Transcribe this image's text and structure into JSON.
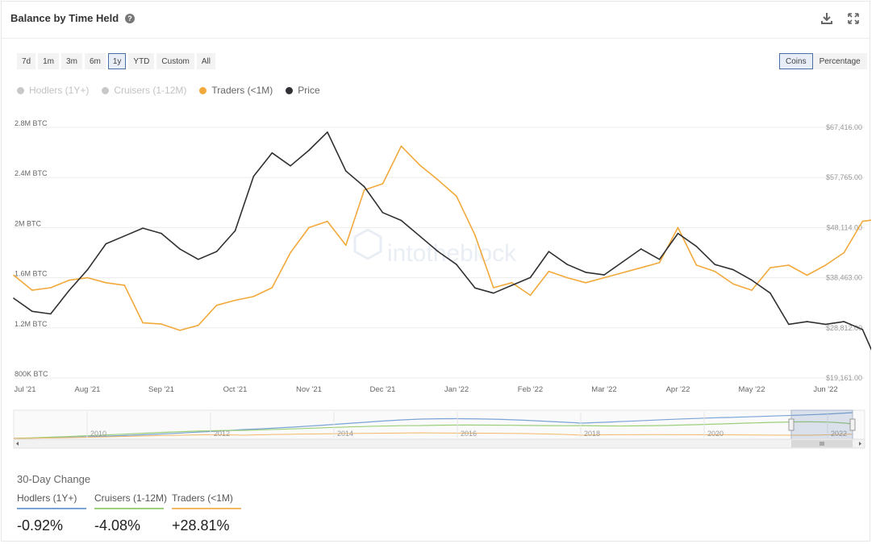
{
  "header": {
    "title": "Balance by Time Held"
  },
  "ranges": [
    "7d",
    "1m",
    "3m",
    "6m",
    "1y",
    "YTD",
    "Custom",
    "All"
  ],
  "active_range": "1y",
  "units": [
    "Coins",
    "Percentage"
  ],
  "active_unit": "Coins",
  "legend": [
    {
      "label": "Hodlers (1Y+)",
      "color": "#c8c8c8",
      "text_color": "#c2c2c2"
    },
    {
      "label": "Cruisers (1-12M)",
      "color": "#c8c8c8",
      "text_color": "#c2c2c2"
    },
    {
      "label": "Traders (<1M)",
      "color": "#f2a93b",
      "text_color": "#666666"
    },
    {
      "label": "Price",
      "color": "#2f3033",
      "text_color": "#666666"
    }
  ],
  "watermark": "intotheblock",
  "navigator": {
    "years": [
      "2010",
      "2012",
      "2014",
      "2016",
      "2018",
      "2020",
      "2022"
    ]
  },
  "change": {
    "title": "30-Day Change",
    "items": [
      {
        "label": "Hodlers (1Y+)",
        "value": "-0.92%",
        "color": "#7aa3d6"
      },
      {
        "label": "Cruisers (1-12M)",
        "value": "-4.08%",
        "color": "#9ccf7a"
      },
      {
        "label": "Traders (<1M)",
        "value": "+28.81%",
        "color": "#f2b866"
      }
    ]
  },
  "chart_data": {
    "type": "line",
    "x_tick_labels": [
      "Jul '21",
      "Aug '21",
      "Sep '21",
      "Oct '21",
      "Nov '21",
      "Dec '21",
      "Jan '22",
      "Feb '22",
      "Mar '22",
      "Apr '22",
      "May '22",
      "Jun '22"
    ],
    "y_left_ticks": [
      "800K BTC",
      "1.2M BTC",
      "1.6M BTC",
      "2M BTC",
      "2.4M BTC",
      "2.8M BTC"
    ],
    "y_left_range": [
      800000,
      2800000
    ],
    "y_right_ticks": [
      "$19,161.00",
      "$28,812.00",
      "$38,463.00",
      "$48,114.00",
      "$57,765.00",
      "$67,416.00"
    ],
    "y_right_range": [
      19161,
      67416
    ],
    "grid": true,
    "x": [
      0,
      0.25,
      0.5,
      0.75,
      1,
      1.25,
      1.5,
      1.75,
      2,
      2.25,
      2.5,
      2.75,
      3,
      3.25,
      3.5,
      3.75,
      4,
      4.25,
      4.5,
      4.75,
      5,
      5.25,
      5.5,
      5.75,
      6,
      6.25,
      6.5,
      6.75,
      7,
      7.25,
      7.5,
      7.75,
      8,
      8.25,
      8.5,
      8.75,
      9,
      9.25,
      9.5,
      9.75,
      10,
      10.25,
      10.5,
      10.75,
      11,
      11.25,
      11.5,
      11.75,
      12
    ],
    "series": [
      {
        "name": "Traders (<1M)",
        "axis": "left",
        "color": "#f2a93b",
        "values": [
          1620000,
          1500000,
          1520000,
          1580000,
          1600000,
          1560000,
          1540000,
          1240000,
          1230000,
          1180000,
          1220000,
          1380000,
          1420000,
          1450000,
          1520000,
          1800000,
          2000000,
          2050000,
          1860000,
          2300000,
          2350000,
          2650000,
          2500000,
          2380000,
          2250000,
          1940000,
          1520000,
          1560000,
          1460000,
          1650000,
          1600000,
          1560000,
          1600000,
          1640000,
          1680000,
          1720000,
          2000000,
          1700000,
          1650000,
          1550000,
          1500000,
          1680000,
          1700000,
          1620000,
          1700000,
          1800000,
          2050000,
          2070000,
          2090000
        ]
      },
      {
        "name": "Price",
        "axis": "right",
        "color": "#2f3033",
        "values": [
          34500,
          32000,
          31500,
          36000,
          40000,
          45000,
          46500,
          48000,
          47000,
          44000,
          42000,
          43500,
          47500,
          58000,
          62500,
          60000,
          63000,
          66500,
          59000,
          56000,
          51000,
          49500,
          46500,
          43500,
          41000,
          36500,
          35500,
          37000,
          38500,
          43500,
          41000,
          39500,
          39000,
          41500,
          44000,
          42000,
          47000,
          44500,
          41000,
          40000,
          38000,
          35500,
          29500,
          30000,
          29500,
          30000,
          28500,
          20500,
          20000
        ]
      }
    ]
  }
}
